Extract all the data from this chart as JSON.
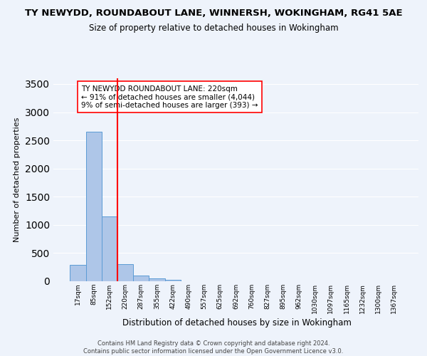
{
  "title1": "TY NEWYDD, ROUNDABOUT LANE, WINNERSH, WOKINGHAM, RG41 5AE",
  "title2": "Size of property relative to detached houses in Wokingham",
  "xlabel": "Distribution of detached houses by size in Wokingham",
  "ylabel": "Number of detached properties",
  "footer1": "Contains HM Land Registry data © Crown copyright and database right 2024.",
  "footer2": "Contains public sector information licensed under the Open Government Licence v3.0.",
  "bar_labels": [
    "17sqm",
    "85sqm",
    "152sqm",
    "220sqm",
    "287sqm",
    "355sqm",
    "422sqm",
    "490sqm",
    "557sqm",
    "625sqm",
    "692sqm",
    "760sqm",
    "827sqm",
    "895sqm",
    "962sqm",
    "1030sqm",
    "1097sqm",
    "1165sqm",
    "1232sqm",
    "1300sqm",
    "1367sqm"
  ],
  "bar_values": [
    290,
    2650,
    1150,
    300,
    95,
    45,
    25,
    0,
    0,
    0,
    0,
    0,
    0,
    0,
    0,
    0,
    0,
    0,
    0,
    0,
    0
  ],
  "bar_color": "#aec6e8",
  "bar_edge_color": "#5b9bd5",
  "vline_x": 2.5,
  "vline_color": "red",
  "vline_linewidth": 1.5,
  "ylim": [
    0,
    3600
  ],
  "yticks": [
    0,
    500,
    1000,
    1500,
    2000,
    2500,
    3000,
    3500
  ],
  "annotation_text": "TY NEWYDD ROUNDABOUT LANE: 220sqm\n← 91% of detached houses are smaller (4,044)\n9% of semi-detached houses are larger (393) →",
  "annotation_box_color": "white",
  "annotation_box_edge": "red",
  "background_color": "#eef3fb",
  "grid_color": "white"
}
